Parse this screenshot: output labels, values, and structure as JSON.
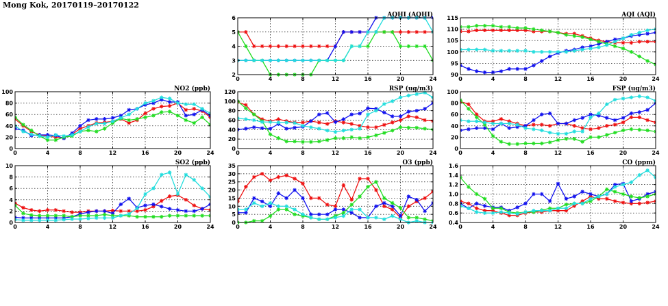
{
  "figure": {
    "title": "Mong Kok, 20170119–20170122"
  },
  "chart_data": [
    {
      "id": "aqhi",
      "type": "line",
      "title": "AQHI (AQHI)",
      "xlim": [
        0,
        24
      ],
      "ylim": [
        2,
        6
      ],
      "xticks": [
        0,
        4,
        8,
        12,
        16,
        20,
        24
      ],
      "yticks": [
        2,
        3,
        4,
        5,
        6
      ],
      "grid": true,
      "series": [
        {
          "color": "#ee1111",
          "values": [
            5,
            5,
            4,
            4,
            4,
            4,
            4,
            4,
            4,
            4,
            4,
            4,
            4,
            5,
            5,
            5,
            5,
            5,
            5,
            5,
            5,
            5,
            5,
            5,
            5
          ]
        },
        {
          "color": "#1111ee",
          "values": [
            3,
            3,
            3,
            3,
            3,
            3,
            3,
            3,
            3,
            3,
            3,
            3,
            4,
            5,
            5,
            5,
            5,
            6,
            6,
            6,
            6,
            6,
            6,
            6,
            6
          ]
        },
        {
          "color": "#22dd22",
          "values": [
            5,
            4,
            3,
            3,
            2,
            2,
            2,
            2,
            2,
            2,
            3,
            3,
            3,
            3,
            4,
            4,
            4,
            5,
            5,
            5,
            4,
            4,
            4,
            4,
            3
          ]
        },
        {
          "color": "#22dddd",
          "values": [
            3,
            3,
            3,
            3,
            3,
            3,
            3,
            3,
            3,
            3,
            3,
            3,
            3,
            3,
            4,
            4,
            5,
            5,
            6,
            6,
            6,
            6,
            6,
            6,
            5
          ]
        }
      ]
    },
    {
      "id": "aqi",
      "type": "line",
      "title": "AQI (AQI)",
      "xlim": [
        0,
        24
      ],
      "ylim": [
        90,
        115
      ],
      "xticks": [
        0,
        4,
        8,
        12,
        16,
        20,
        24
      ],
      "yticks": [
        90,
        95,
        100,
        105,
        110,
        115
      ],
      "grid": true,
      "series": [
        {
          "color": "#ee1111",
          "values": [
            109,
            109,
            109.5,
            109.5,
            109.5,
            109.5,
            109.5,
            109.5,
            109.5,
            109,
            109,
            109,
            108.5,
            108,
            108,
            107,
            106,
            105,
            104.5,
            104,
            104,
            104,
            104.5,
            104.5,
            104.5
          ]
        },
        {
          "color": "#1111ee",
          "values": [
            94,
            92.5,
            91.5,
            91,
            91,
            91.5,
            92.5,
            92.5,
            92.5,
            94,
            96,
            98,
            99.5,
            100.5,
            101,
            102,
            102.5,
            103.5,
            104.5,
            105.5,
            106,
            107,
            107.5,
            108,
            108.5
          ]
        },
        {
          "color": "#22dd22",
          "values": [
            111,
            111,
            111.5,
            111.5,
            111.5,
            111,
            111,
            110.5,
            110.5,
            110,
            109.5,
            109,
            108.5,
            107.5,
            107,
            106.5,
            105.5,
            104.5,
            103.5,
            102.5,
            101.5,
            100,
            98,
            96,
            94.5
          ]
        },
        {
          "color": "#22dddd",
          "values": [
            101,
            101,
            101,
            101,
            100.5,
            100.5,
            100.5,
            100.5,
            100.5,
            100,
            100,
            100,
            100,
            100,
            100.5,
            101,
            101.5,
            102,
            103,
            104.5,
            106,
            107.5,
            108.5,
            109.5,
            110
          ]
        }
      ]
    },
    {
      "id": "no2",
      "type": "line",
      "title": "NO2 (ppb)",
      "xlim": [
        0,
        24
      ],
      "ylim": [
        0,
        100
      ],
      "xticks": [
        0,
        4,
        8,
        12,
        16,
        20,
        24
      ],
      "yticks": [
        0,
        20,
        40,
        60,
        80,
        100
      ],
      "grid": true,
      "series": [
        {
          "color": "#ee1111",
          "values": [
            52,
            40,
            30,
            24,
            22,
            20,
            19,
            25,
            35,
            40,
            45,
            46,
            48,
            52,
            45,
            50,
            62,
            70,
            74,
            75,
            80,
            68,
            70,
            66,
            55
          ]
        },
        {
          "color": "#1111ee",
          "values": [
            35,
            32,
            23,
            24,
            24,
            23,
            18,
            27,
            40,
            50,
            52,
            52,
            54,
            58,
            68,
            70,
            77,
            80,
            86,
            82,
            82,
            58,
            60,
            68,
            58
          ]
        },
        {
          "color": "#22dd22",
          "values": [
            55,
            42,
            32,
            22,
            15,
            15,
            20,
            22,
            30,
            32,
            30,
            35,
            45,
            53,
            50,
            52,
            55,
            58,
            64,
            65,
            58,
            50,
            45,
            55,
            42
          ]
        },
        {
          "color": "#22dddd",
          "values": [
            40,
            30,
            25,
            22,
            20,
            24,
            22,
            24,
            30,
            38,
            44,
            44,
            48,
            54,
            60,
            70,
            80,
            84,
            90,
            88,
            80,
            78,
            78,
            70,
            62
          ]
        }
      ]
    },
    {
      "id": "rsp",
      "type": "line",
      "title": "RSP (ug/m3)",
      "xlim": [
        0,
        24
      ],
      "ylim": [
        0,
        120
      ],
      "xticks": [
        0,
        4,
        8,
        12,
        16,
        20,
        24
      ],
      "yticks": [
        0,
        20,
        40,
        60,
        80,
        100,
        120
      ],
      "grid": true,
      "series": [
        {
          "color": "#ee1111",
          "values": [
            98,
            92,
            72,
            62,
            58,
            62,
            58,
            55,
            55,
            58,
            55,
            52,
            58,
            55,
            52,
            48,
            45,
            45,
            50,
            55,
            60,
            68,
            66,
            60,
            58
          ]
        },
        {
          "color": "#1111ee",
          "values": [
            40,
            42,
            45,
            43,
            42,
            52,
            42,
            44,
            46,
            58,
            72,
            75,
            56,
            62,
            72,
            74,
            85,
            84,
            76,
            68,
            68,
            78,
            80,
            84,
            96
          ]
        },
        {
          "color": "#22dd22",
          "values": [
            100,
            85,
            72,
            58,
            30,
            22,
            15,
            15,
            14,
            14,
            15,
            18,
            22,
            22,
            24,
            22,
            24,
            28,
            33,
            38,
            45,
            44,
            44,
            42,
            40
          ]
        },
        {
          "color": "#22dddd",
          "values": [
            64,
            62,
            60,
            56,
            56,
            55,
            55,
            54,
            48,
            45,
            42,
            38,
            35,
            38,
            40,
            42,
            72,
            80,
            94,
            100,
            108,
            112,
            115,
            118,
            108
          ]
        }
      ]
    },
    {
      "id": "fsp",
      "type": "line",
      "title": "FSP (ug/m3)",
      "xlim": [
        0,
        24
      ],
      "ylim": [
        0,
        100
      ],
      "xticks": [
        0,
        4,
        8,
        12,
        16,
        20,
        24
      ],
      "yticks": [
        0,
        20,
        40,
        60,
        80,
        100
      ],
      "grid": true,
      "series": [
        {
          "color": "#ee1111",
          "values": [
            83,
            78,
            60,
            48,
            48,
            52,
            48,
            44,
            40,
            42,
            42,
            40,
            44,
            44,
            40,
            36,
            34,
            36,
            40,
            42,
            46,
            55,
            55,
            50,
            46
          ]
        },
        {
          "color": "#1111ee",
          "values": [
            32,
            34,
            36,
            36,
            34,
            44,
            36,
            38,
            40,
            50,
            60,
            62,
            44,
            44,
            50,
            54,
            60,
            58,
            54,
            50,
            54,
            62,
            64,
            68,
            80
          ]
        },
        {
          "color": "#22dd22",
          "values": [
            85,
            70,
            55,
            42,
            22,
            12,
            8,
            8,
            9,
            9,
            9,
            11,
            15,
            17,
            17,
            12,
            20,
            20,
            24,
            28,
            32,
            34,
            33,
            32,
            30
          ]
        },
        {
          "color": "#22dddd",
          "values": [
            50,
            48,
            48,
            46,
            44,
            44,
            44,
            42,
            36,
            34,
            32,
            28,
            26,
            26,
            30,
            30,
            55,
            62,
            78,
            86,
            88,
            90,
            92,
            90,
            84
          ]
        }
      ]
    },
    {
      "id": "so2",
      "type": "line",
      "title": "SO2 (ppb)",
      "xlim": [
        0,
        24
      ],
      "ylim": [
        0,
        10
      ],
      "xticks": [
        0,
        4,
        8,
        12,
        16,
        20,
        24
      ],
      "yticks": [
        0,
        2,
        4,
        6,
        8,
        10
      ],
      "grid": true,
      "series": [
        {
          "color": "#ee1111",
          "values": [
            3.4,
            2.6,
            2.2,
            2,
            2.2,
            2.2,
            2,
            1.8,
            1.8,
            2,
            2,
            2,
            2.1,
            2,
            2,
            2,
            2.2,
            2.8,
            3.8,
            4.6,
            4.8,
            4,
            3,
            2.4,
            2.2
          ]
        },
        {
          "color": "#1111ee",
          "values": [
            0.9,
            0.8,
            0.8,
            0.8,
            0.8,
            0.8,
            0.8,
            1,
            1.5,
            1.8,
            2,
            2,
            1.6,
            3.2,
            4.2,
            2.6,
            3,
            3.2,
            2.8,
            2.4,
            2.2,
            2,
            2,
            2.4,
            3.2
          ]
        },
        {
          "color": "#22dd22",
          "values": [
            3,
            1.6,
            1.3,
            1.2,
            1.2,
            1.2,
            1.2,
            1,
            1.2,
            1.2,
            1.2,
            1.4,
            1.2,
            1.2,
            1.2,
            1,
            1,
            1,
            1,
            1.2,
            1.2,
            1.2,
            1.2,
            1.2,
            1.2
          ]
        },
        {
          "color": "#22dddd",
          "values": [
            0.5,
            0.4,
            0.4,
            0.4,
            0.4,
            0.4,
            0.5,
            0.6,
            0.6,
            0.7,
            0.8,
            0.8,
            0.8,
            1.2,
            1.5,
            2.5,
            5,
            6,
            8.4,
            8.8,
            5,
            8.4,
            7.5,
            6,
            4.5
          ]
        }
      ]
    },
    {
      "id": "o3",
      "type": "line",
      "title": "O3 (ppb)",
      "xlim": [
        0,
        24
      ],
      "ylim": [
        0,
        35
      ],
      "xticks": [
        0,
        4,
        8,
        12,
        16,
        20,
        24
      ],
      "yticks": [
        0,
        5,
        10,
        15,
        20,
        25,
        30,
        35
      ],
      "grid": true,
      "series": [
        {
          "color": "#ee1111",
          "values": [
            13,
            22,
            28,
            30,
            26,
            28,
            29,
            27,
            24,
            15,
            15,
            11,
            10,
            23,
            14,
            27,
            27,
            20,
            10,
            8,
            3,
            10,
            13,
            15,
            19
          ]
        },
        {
          "color": "#1111ee",
          "values": [
            6,
            6,
            15,
            13,
            10,
            18,
            15,
            20,
            15,
            5,
            5,
            5,
            8,
            8,
            6,
            3,
            3,
            10,
            12,
            10,
            4,
            16,
            14,
            7,
            12
          ]
        },
        {
          "color": "#22dd22",
          "values": [
            0,
            0,
            1,
            1,
            4,
            8,
            8,
            5,
            4,
            3,
            2,
            2,
            4,
            6,
            11,
            16,
            22,
            25,
            15,
            12,
            9,
            3,
            3,
            2,
            1
          ]
        },
        {
          "color": "#22dddd",
          "values": [
            8,
            8,
            12,
            10,
            12,
            10,
            10,
            8,
            5,
            3,
            2,
            2,
            3,
            4,
            8,
            8,
            3,
            3,
            2,
            4,
            2,
            0,
            1,
            0,
            0
          ]
        }
      ]
    },
    {
      "id": "co",
      "type": "line",
      "title": "CO (ppm)",
      "xlim": [
        0,
        24
      ],
      "ylim": [
        0.4,
        1.6
      ],
      "xticks": [
        0,
        4,
        8,
        12,
        16,
        20,
        24
      ],
      "yticks": [
        0.4,
        0.6,
        0.8,
        1.0,
        1.2,
        1.4,
        1.6
      ],
      "grid": true,
      "series": [
        {
          "color": "#ee1111",
          "values": [
            0.85,
            0.8,
            0.7,
            0.65,
            0.65,
            0.6,
            0.55,
            0.55,
            0.6,
            0.62,
            0.62,
            0.65,
            0.65,
            0.65,
            0.75,
            0.85,
            0.95,
            0.9,
            0.9,
            0.85,
            0.82,
            0.8,
            0.8,
            0.82,
            0.85
          ]
        },
        {
          "color": "#1111ee",
          "values": [
            0.8,
            0.7,
            0.8,
            0.75,
            0.72,
            0.72,
            0.65,
            0.72,
            0.8,
            1.0,
            1.0,
            0.85,
            1.22,
            0.9,
            0.95,
            1.05,
            1.0,
            0.95,
            1.0,
            1.2,
            1.22,
            0.85,
            0.9,
            1.0,
            1.05
          ]
        },
        {
          "color": "#22dd22",
          "values": [
            1.35,
            1.15,
            1.0,
            0.9,
            0.7,
            0.7,
            0.62,
            0.6,
            0.62,
            0.62,
            0.66,
            0.7,
            0.7,
            0.78,
            0.8,
            0.8,
            0.85,
            0.95,
            1.1,
            1.05,
            1.0,
            0.95,
            0.92,
            0.95,
            1.0
          ]
        },
        {
          "color": "#22dddd",
          "values": [
            0.75,
            0.7,
            0.62,
            0.6,
            0.6,
            0.62,
            0.6,
            0.58,
            0.62,
            0.65,
            0.65,
            0.65,
            0.7,
            0.7,
            0.8,
            0.8,
            0.9,
            0.95,
            1.0,
            1.15,
            1.2,
            1.25,
            1.4,
            1.5,
            1.35
          ]
        }
      ]
    }
  ]
}
